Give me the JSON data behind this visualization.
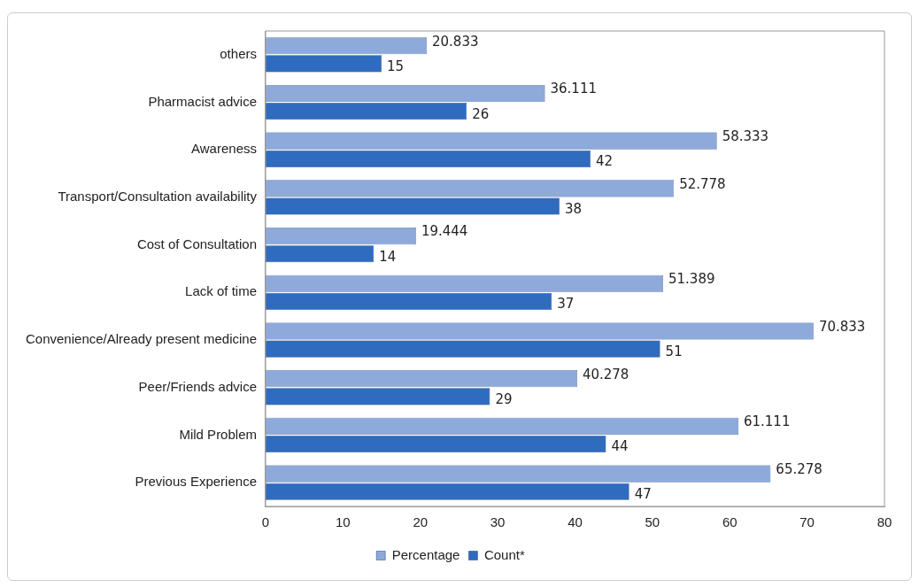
{
  "chart_data": {
    "type": "bar",
    "orientation": "horizontal",
    "categories": [
      "others",
      "Pharmacist advice",
      "Awareness",
      "Transport/Consultation availability",
      "Cost of Consultation",
      "Lack of time",
      "Convenience/Already present medicine",
      "Peer/Friends advice",
      "Mild Problem",
      "Previous Experience"
    ],
    "series": [
      {
        "name": "Percentage",
        "color": "#8eaadb",
        "values": [
          20.833,
          36.111,
          58.333,
          52.778,
          19.444,
          51.389,
          70.833,
          40.278,
          61.111,
          65.278
        ]
      },
      {
        "name": "Count*",
        "color": "#2f6bbf",
        "values": [
          15,
          26,
          42,
          38,
          14,
          37,
          51,
          29,
          44,
          47
        ]
      }
    ],
    "xlim": [
      0,
      80
    ],
    "xticks": [
      0,
      10,
      20,
      30,
      40,
      50,
      60,
      70,
      80
    ],
    "data_labels": true,
    "grid": false,
    "legend": "bottom"
  }
}
